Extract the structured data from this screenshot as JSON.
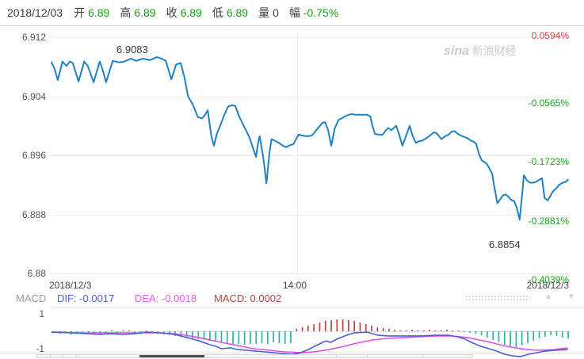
{
  "header": {
    "date": "2018/12/03",
    "fields": [
      {
        "label": "开",
        "value": "6.89",
        "color": "#1aa31a"
      },
      {
        "label": "高",
        "value": "6.89",
        "color": "#1aa31a"
      },
      {
        "label": "收",
        "value": "6.89",
        "color": "#1aa31a"
      },
      {
        "label": "低",
        "value": "6.89",
        "color": "#1aa31a"
      },
      {
        "label": "量",
        "value": "0",
        "color": "#3c3c3c"
      },
      {
        "label": "幅",
        "value": "-0.75%",
        "color": "#1aa31a"
      }
    ]
  },
  "watermark": {
    "brand": "sina",
    "suffix": " 新浪财经"
  },
  "icons": {
    "up_triangle": "▲",
    "down_triangle": "▼"
  },
  "colors": {
    "price_line": "#1e81c4",
    "grid": "#ececec",
    "pane_border": "#e6e6e6",
    "zero_line": "#e0e0e0",
    "green_text": "#1aa31a",
    "red_text": "#e23b3b",
    "dif_line": "#4a5cd8",
    "dea_line": "#e14fe1",
    "macd_up": "#c0443c",
    "macd_down": "#2fb5a3"
  },
  "chart_data": [
    {
      "type": "line",
      "title": "intraday price 2018/12/03",
      "y_axis": {
        "ticks": [
          6.912,
          6.904,
          6.896,
          6.888,
          6.88
        ],
        "range": [
          6.88,
          6.912
        ]
      },
      "y2_axis": {
        "ticks": [
          {
            "label": "0.0594%",
            "color": "#e23b3b"
          },
          {
            "label": "-0.0565%",
            "color": "#1aa31a"
          },
          {
            "label": "-0.1723%",
            "color": "#1aa31a"
          },
          {
            "label": "-0.2881%",
            "color": "#1aa31a"
          },
          {
            "label": "-0.4039%",
            "color": "#1aa31a"
          }
        ]
      },
      "x_axis": {
        "ticks": [
          "2018/12/3",
          "14:00",
          "2018/12/3"
        ],
        "grid_t": [
          0.473
        ]
      },
      "annotations": {
        "max": "6.9083",
        "min": "6.8854"
      },
      "series": [
        {
          "name": "price",
          "points": [
            [
              0.0,
              6.9086
            ],
            [
              0.006,
              6.9077
            ],
            [
              0.012,
              6.9062
            ],
            [
              0.021,
              6.9087
            ],
            [
              0.029,
              6.9081
            ],
            [
              0.035,
              6.9087
            ],
            [
              0.041,
              6.9085
            ],
            [
              0.052,
              6.906
            ],
            [
              0.063,
              6.9087
            ],
            [
              0.07,
              6.9081
            ],
            [
              0.081,
              6.9059
            ],
            [
              0.093,
              6.9087
            ],
            [
              0.099,
              6.9075
            ],
            [
              0.105,
              6.9059
            ],
            [
              0.118,
              6.9088
            ],
            [
              0.13,
              6.9086
            ],
            [
              0.14,
              6.9087
            ],
            [
              0.153,
              6.9091
            ],
            [
              0.163,
              6.9088
            ],
            [
              0.176,
              6.9091
            ],
            [
              0.189,
              6.9089
            ],
            [
              0.203,
              6.9093
            ],
            [
              0.212,
              6.9091
            ],
            [
              0.22,
              6.9088
            ],
            [
              0.231,
              6.9063
            ],
            [
              0.24,
              6.9083
            ],
            [
              0.249,
              6.9085
            ],
            [
              0.256,
              6.9066
            ],
            [
              0.263,
              6.904
            ],
            [
              0.272,
              6.9029
            ],
            [
              0.282,
              6.9012
            ],
            [
              0.29,
              6.901
            ],
            [
              0.295,
              6.9014
            ],
            [
              0.301,
              6.9021
            ],
            [
              0.308,
              6.8986
            ],
            [
              0.313,
              6.8973
            ],
            [
              0.319,
              6.899
            ],
            [
              0.325,
              6.9
            ],
            [
              0.333,
              6.9015
            ],
            [
              0.34,
              6.9026
            ],
            [
              0.348,
              6.9028
            ],
            [
              0.354,
              6.9027
            ],
            [
              0.362,
              6.9012
            ],
            [
              0.369,
              6.9002
            ],
            [
              0.376,
              6.8992
            ],
            [
              0.382,
              6.8983
            ],
            [
              0.389,
              6.8968
            ],
            [
              0.394,
              6.8958
            ],
            [
              0.398,
              6.8977
            ],
            [
              0.401,
              6.8986
            ],
            [
              0.408,
              6.8957
            ],
            [
              0.414,
              6.8922
            ],
            [
              0.42,
              6.8964
            ],
            [
              0.424,
              6.8982
            ],
            [
              0.432,
              6.8979
            ],
            [
              0.438,
              6.8977
            ],
            [
              0.446,
              6.8973
            ],
            [
              0.452,
              6.8971
            ],
            [
              0.46,
              6.8974
            ],
            [
              0.466,
              6.8975
            ],
            [
              0.476,
              6.8988
            ],
            [
              0.482,
              6.8987
            ],
            [
              0.49,
              6.8986
            ],
            [
              0.496,
              6.8986
            ],
            [
              0.502,
              6.8987
            ],
            [
              0.51,
              6.8994
            ],
            [
              0.516,
              6.8999
            ],
            [
              0.522,
              6.9004
            ],
            [
              0.527,
              6.9005
            ],
            [
              0.533,
              6.8994
            ],
            [
              0.539,
              6.8973
            ],
            [
              0.546,
              6.8997
            ],
            [
              0.553,
              6.9008
            ],
            [
              0.559,
              6.901
            ],
            [
              0.566,
              6.9013
            ],
            [
              0.573,
              6.9015
            ],
            [
              0.579,
              6.9016
            ],
            [
              0.586,
              6.9015
            ],
            [
              0.6,
              6.9015
            ],
            [
              0.608,
              6.9015
            ],
            [
              0.614,
              6.9013
            ],
            [
              0.618,
              6.9001
            ],
            [
              0.623,
              6.8989
            ],
            [
              0.631,
              6.8988
            ],
            [
              0.638,
              6.8988
            ],
            [
              0.643,
              6.8993
            ],
            [
              0.649,
              6.8997
            ],
            [
              0.655,
              6.8994
            ],
            [
              0.664,
              6.9
            ],
            [
              0.67,
              6.8988
            ],
            [
              0.676,
              6.8973
            ],
            [
              0.684,
              6.8988
            ],
            [
              0.69,
              6.9
            ],
            [
              0.696,
              6.8986
            ],
            [
              0.702,
              6.8977
            ],
            [
              0.708,
              6.8979
            ],
            [
              0.714,
              6.898
            ],
            [
              0.722,
              6.8983
            ],
            [
              0.728,
              6.8986
            ],
            [
              0.734,
              6.899
            ],
            [
              0.739,
              6.8991
            ],
            [
              0.743,
              6.8989
            ],
            [
              0.751,
              6.8982
            ],
            [
              0.759,
              6.8986
            ],
            [
              0.765,
              6.8988
            ],
            [
              0.771,
              6.8992
            ],
            [
              0.776,
              6.8993
            ],
            [
              0.783,
              6.8989
            ],
            [
              0.788,
              6.8987
            ],
            [
              0.795,
              6.8985
            ],
            [
              0.802,
              6.8983
            ],
            [
              0.808,
              6.898
            ],
            [
              0.814,
              6.8978
            ],
            [
              0.818,
              6.8976
            ],
            [
              0.824,
              6.8961
            ],
            [
              0.829,
              6.8953
            ],
            [
              0.834,
              6.8951
            ],
            [
              0.838,
              6.8949
            ],
            [
              0.844,
              6.8942
            ],
            [
              0.849,
              6.8935
            ],
            [
              0.853,
              6.8918
            ],
            [
              0.859,
              6.8895
            ],
            [
              0.864,
              6.89
            ],
            [
              0.87,
              6.8906
            ],
            [
              0.875,
              6.8907
            ],
            [
              0.879,
              6.8905
            ],
            [
              0.885,
              6.89
            ],
            [
              0.891,
              6.8898
            ],
            [
              0.896,
              6.889
            ],
            [
              0.902,
              6.8873
            ],
            [
              0.907,
              6.8909
            ],
            [
              0.91,
              6.8933
            ],
            [
              0.916,
              6.8926
            ],
            [
              0.922,
              6.8923
            ],
            [
              0.928,
              6.8923
            ],
            [
              0.934,
              6.8924
            ],
            [
              0.94,
              6.8927
            ],
            [
              0.945,
              6.8929
            ],
            [
              0.95,
              6.8902
            ],
            [
              0.956,
              6.8899
            ],
            [
              0.962,
              6.8906
            ],
            [
              0.966,
              6.8911
            ],
            [
              0.972,
              6.8915
            ],
            [
              0.978,
              6.892
            ],
            [
              0.985,
              6.8923
            ],
            [
              0.991,
              6.8924
            ],
            [
              0.995,
              6.8927
            ]
          ]
        }
      ]
    },
    {
      "type": "macd",
      "legend": {
        "name": "MACD",
        "dif": -0.0017,
        "dea": -0.0018,
        "macd": 0.0002,
        "dif_label": "DIF: -0.0017",
        "dea_label": "DEA: -0.0018",
        "macd_label": "MACD: 0.0002"
      },
      "y_axis": {
        "ticks": [
          1,
          -1
        ]
      },
      "histogram": [
        -0.09,
        -0.14,
        -0.09,
        -0.18,
        -0.14,
        -0.09,
        -0.14,
        -0.18,
        -0.14,
        -0.09,
        0.05,
        -0.09,
        0.05,
        0.05,
        -0.09,
        -0.14,
        0.05,
        -0.09,
        -0.14,
        -0.18,
        -0.23,
        -0.27,
        -0.32,
        -0.36,
        -0.41,
        -0.45,
        -0.5,
        -0.55,
        -0.59,
        -0.64,
        -0.68,
        -0.73,
        -0.73,
        -0.77,
        -0.73,
        -0.73,
        -0.68,
        -0.73,
        -0.64,
        -0.68,
        -0.73,
        -0.68,
        0.14,
        0.23,
        0.32,
        0.41,
        0.5,
        0.59,
        0.64,
        0.68,
        0.68,
        0.64,
        0.59,
        0.5,
        0.41,
        0.32,
        0.23,
        0.18,
        0.14,
        0.09,
        0.05,
        0.05,
        0.09,
        0.05,
        0.05,
        0.09,
        0.05,
        0.05,
        0.09,
        0.05,
        0.05,
        -0.05,
        -0.09,
        -0.14,
        -0.23,
        -0.36,
        -0.5,
        -0.64,
        -0.77,
        -0.86,
        -0.91,
        -0.82,
        -0.68,
        -0.55,
        -0.41,
        -0.32,
        -0.23,
        -0.27,
        -0.36,
        -0.41
      ],
      "dif_points": [
        [
          0.0,
          -0.05
        ],
        [
          0.038,
          -0.09
        ],
        [
          0.069,
          -0.14
        ],
        [
          0.092,
          -0.18
        ],
        [
          0.115,
          -0.14
        ],
        [
          0.137,
          -0.18
        ],
        [
          0.16,
          -0.14
        ],
        [
          0.183,
          -0.05
        ],
        [
          0.206,
          -0.09
        ],
        [
          0.229,
          -0.14
        ],
        [
          0.249,
          -0.27
        ],
        [
          0.267,
          -0.41
        ],
        [
          0.285,
          -0.55
        ],
        [
          0.301,
          -0.73
        ],
        [
          0.316,
          -0.86
        ],
        [
          0.328,
          -1.0
        ],
        [
          0.344,
          -0.95
        ],
        [
          0.359,
          -1.05
        ],
        [
          0.377,
          -1.09
        ],
        [
          0.392,
          -1.14
        ],
        [
          0.411,
          -1.18
        ],
        [
          0.427,
          -1.23
        ],
        [
          0.444,
          -1.27
        ],
        [
          0.461,
          -1.32
        ],
        [
          0.476,
          -1.27
        ],
        [
          0.492,
          -1.09
        ],
        [
          0.507,
          -0.86
        ],
        [
          0.522,
          -0.64
        ],
        [
          0.53,
          -0.55
        ],
        [
          0.537,
          -0.64
        ],
        [
          0.553,
          -0.41
        ],
        [
          0.568,
          -0.23
        ],
        [
          0.583,
          -0.09
        ],
        [
          0.609,
          -0.05
        ],
        [
          0.629,
          -0.23
        ],
        [
          0.649,
          -0.27
        ],
        [
          0.679,
          -0.27
        ],
        [
          0.71,
          -0.27
        ],
        [
          0.74,
          -0.23
        ],
        [
          0.766,
          -0.23
        ],
        [
          0.782,
          -0.32
        ],
        [
          0.797,
          -0.45
        ],
        [
          0.812,
          -0.68
        ],
        [
          0.827,
          -0.86
        ],
        [
          0.843,
          -1.0
        ],
        [
          0.858,
          -1.14
        ],
        [
          0.873,
          -1.32
        ],
        [
          0.888,
          -1.41
        ],
        [
          0.904,
          -1.45
        ],
        [
          0.919,
          -1.32
        ],
        [
          0.934,
          -1.23
        ],
        [
          0.95,
          -1.14
        ],
        [
          0.969,
          -1.09
        ],
        [
          0.995,
          -1.05
        ]
      ],
      "dea_points": [
        [
          0.0,
          -0.05
        ],
        [
          0.053,
          -0.09
        ],
        [
          0.13,
          -0.09
        ],
        [
          0.206,
          -0.09
        ],
        [
          0.237,
          -0.14
        ],
        [
          0.267,
          -0.27
        ],
        [
          0.298,
          -0.45
        ],
        [
          0.328,
          -0.64
        ],
        [
          0.359,
          -0.82
        ],
        [
          0.389,
          -1.0
        ],
        [
          0.42,
          -1.09
        ],
        [
          0.45,
          -1.18
        ],
        [
          0.481,
          -1.23
        ],
        [
          0.504,
          -1.18
        ],
        [
          0.527,
          -1.09
        ],
        [
          0.557,
          -0.91
        ],
        [
          0.588,
          -0.68
        ],
        [
          0.618,
          -0.5
        ],
        [
          0.649,
          -0.41
        ],
        [
          0.679,
          -0.36
        ],
        [
          0.71,
          -0.32
        ],
        [
          0.74,
          -0.27
        ],
        [
          0.771,
          -0.27
        ],
        [
          0.802,
          -0.36
        ],
        [
          0.824,
          -0.5
        ],
        [
          0.847,
          -0.64
        ],
        [
          0.87,
          -0.82
        ],
        [
          0.893,
          -0.95
        ],
        [
          0.916,
          -1.05
        ],
        [
          0.939,
          -1.09
        ],
        [
          0.969,
          -1.05
        ],
        [
          0.995,
          -0.95
        ]
      ]
    }
  ]
}
